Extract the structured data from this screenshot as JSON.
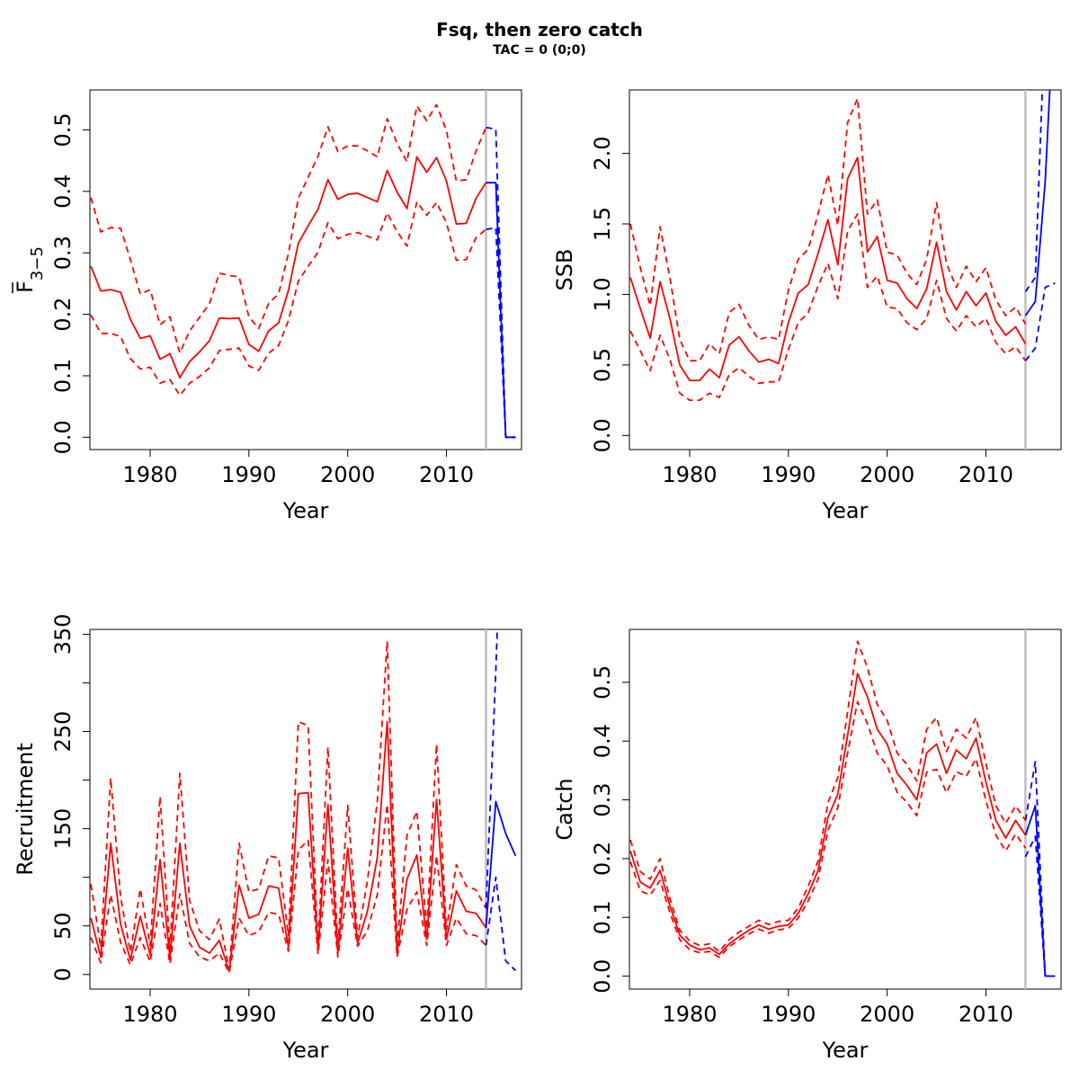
{
  "figure": {
    "title": "Fsq, then zero catch",
    "subtitle": "TAC = 0 (0;0)"
  },
  "colors": {
    "hist": "#ff0000",
    "proj": "#0000ff",
    "vline": "#bebebe",
    "axis": "#000000"
  },
  "chart_data": [
    {
      "id": "fbar",
      "type": "line",
      "xlabel": "Year",
      "ylabel_main": "F",
      "ylabel_sub": "3−5",
      "xlim": [
        1973.9,
        2017.6
      ],
      "ylim": [
        -0.02,
        0.565
      ],
      "xticks": [
        "1980",
        "1990",
        "2000",
        "2010"
      ],
      "yticks": [
        "0.0",
        "0.1",
        "0.2",
        "0.3",
        "0.4",
        "0.5"
      ],
      "vline_x": 2014,
      "hist_x0": 1974,
      "hist_mid": [
        0.278,
        0.238,
        0.24,
        0.236,
        0.192,
        0.161,
        0.165,
        0.127,
        0.136,
        0.097,
        0.123,
        0.139,
        0.157,
        0.194,
        0.193,
        0.194,
        0.151,
        0.14,
        0.173,
        0.186,
        0.239,
        0.316,
        0.344,
        0.371,
        0.419,
        0.387,
        0.395,
        0.397,
        0.39,
        0.383,
        0.434,
        0.399,
        0.372,
        0.456,
        0.431,
        0.455,
        0.417,
        0.347,
        0.348,
        0.389,
        0.414
      ],
      "hist_lo": [
        0.199,
        0.169,
        0.169,
        0.164,
        0.128,
        0.111,
        0.114,
        0.088,
        0.094,
        0.068,
        0.088,
        0.099,
        0.113,
        0.141,
        0.143,
        0.145,
        0.116,
        0.109,
        0.137,
        0.149,
        0.19,
        0.254,
        0.278,
        0.301,
        0.349,
        0.323,
        0.33,
        0.333,
        0.327,
        0.321,
        0.365,
        0.335,
        0.311,
        0.383,
        0.361,
        0.382,
        0.349,
        0.288,
        0.289,
        0.325,
        0.338
      ],
      "hist_hi": [
        0.39,
        0.334,
        0.341,
        0.34,
        0.289,
        0.233,
        0.24,
        0.183,
        0.196,
        0.137,
        0.173,
        0.195,
        0.217,
        0.267,
        0.263,
        0.261,
        0.196,
        0.177,
        0.218,
        0.233,
        0.299,
        0.389,
        0.423,
        0.457,
        0.505,
        0.465,
        0.474,
        0.474,
        0.466,
        0.456,
        0.518,
        0.478,
        0.448,
        0.539,
        0.515,
        0.541,
        0.499,
        0.417,
        0.419,
        0.466,
        0.504
      ],
      "proj_x": [
        2014,
        2015,
        2016,
        2017
      ],
      "proj_mid": [
        0.414,
        0.414,
        0.0,
        0.0
      ],
      "proj_lo": [
        0.338,
        0.341,
        0.0,
        0.0
      ],
      "proj_hi": [
        0.504,
        0.501,
        0.0,
        0.0
      ]
    },
    {
      "id": "ssb",
      "type": "line",
      "xlabel": "Year",
      "ylabel_main": "SSB",
      "ylabel_sub": "",
      "xlim": [
        1973.9,
        2017.6
      ],
      "ylim": [
        -0.1,
        2.45
      ],
      "xticks": [
        "1980",
        "1990",
        "2000",
        "2010"
      ],
      "yticks": [
        "0.0",
        "0.5",
        "1.0",
        "1.5",
        "2.0"
      ],
      "vline_x": 2014,
      "hist_x0": 1974,
      "hist_mid": [
        1.12,
        0.9,
        0.69,
        1.09,
        0.83,
        0.5,
        0.39,
        0.39,
        0.47,
        0.41,
        0.64,
        0.7,
        0.6,
        0.52,
        0.54,
        0.51,
        0.8,
        1.01,
        1.07,
        1.29,
        1.53,
        1.21,
        1.82,
        1.97,
        1.3,
        1.41,
        1.1,
        1.08,
        0.97,
        0.9,
        1.04,
        1.37,
        1.02,
        0.89,
        1.02,
        0.92,
        1.01,
        0.81,
        0.71,
        0.77,
        0.65
      ],
      "hist_lo": [
        0.74,
        0.6,
        0.46,
        0.71,
        0.54,
        0.3,
        0.25,
        0.25,
        0.3,
        0.27,
        0.43,
        0.48,
        0.42,
        0.37,
        0.38,
        0.38,
        0.61,
        0.8,
        0.87,
        1.06,
        1.22,
        0.97,
        1.45,
        1.57,
        1.05,
        1.13,
        0.91,
        0.9,
        0.8,
        0.75,
        0.83,
        1.1,
        0.83,
        0.74,
        0.85,
        0.77,
        0.83,
        0.66,
        0.58,
        0.63,
        0.53
      ],
      "hist_hi": [
        1.5,
        1.19,
        0.92,
        1.48,
        1.12,
        0.68,
        0.53,
        0.53,
        0.65,
        0.58,
        0.87,
        0.93,
        0.78,
        0.68,
        0.7,
        0.68,
        1.03,
        1.25,
        1.32,
        1.57,
        1.85,
        1.49,
        2.22,
        2.39,
        1.57,
        1.67,
        1.3,
        1.28,
        1.15,
        1.07,
        1.25,
        1.65,
        1.22,
        1.05,
        1.2,
        1.09,
        1.19,
        0.96,
        0.85,
        0.91,
        0.79
      ],
      "proj_x": [
        2014,
        2015,
        2016,
        2017
      ],
      "proj_mid": [
        0.85,
        0.95,
        1.8,
        3.2
      ],
      "proj_lo": [
        0.53,
        0.62,
        1.05,
        1.08
      ],
      "proj_hi": [
        1.02,
        1.12,
        3.0,
        4.5
      ]
    },
    {
      "id": "rec",
      "type": "line",
      "xlabel": "Year",
      "ylabel_main": "Recruitment",
      "ylabel_sub": "",
      "xlim": [
        1973.9,
        2017.6
      ],
      "ylim": [
        -15,
        355
      ],
      "xticks": [
        "1980",
        "1990",
        "2000",
        "2010"
      ],
      "yticks": [
        "0",
        "50",
        "150",
        "250",
        "350"
      ],
      "yticks_minor": [
        100,
        200,
        300
      ],
      "vline_x": 2014,
      "hist_x0": 1974,
      "hist_mid": [
        58,
        18,
        135,
        52,
        15,
        60,
        20,
        118,
        17,
        135,
        50,
        28,
        22,
        35,
        3,
        92,
        58,
        62,
        91,
        89,
        28,
        186,
        187,
        25,
        175,
        22,
        130,
        32,
        65,
        120,
        260,
        22,
        98,
        123,
        36,
        180,
        36,
        86,
        65,
        63,
        48
      ],
      "hist_lo": [
        38,
        12,
        82,
        33,
        10,
        38,
        13,
        73,
        11,
        83,
        32,
        18,
        14,
        22,
        2,
        58,
        40,
        44,
        64,
        62,
        24,
        128,
        138,
        21,
        118,
        18,
        88,
        29,
        45,
        82,
        175,
        18,
        67,
        85,
        30,
        122,
        30,
        58,
        42,
        40,
        30
      ],
      "hist_hi": [
        93,
        28,
        202,
        80,
        23,
        88,
        30,
        183,
        26,
        207,
        76,
        45,
        36,
        57,
        5,
        135,
        85,
        88,
        122,
        120,
        40,
        260,
        256,
        30,
        234,
        30,
        174,
        38,
        96,
        178,
        343,
        30,
        143,
        168,
        47,
        237,
        46,
        113,
        91,
        87,
        68
      ],
      "proj_x": [
        2014,
        2015,
        2016,
        2017
      ],
      "proj_mid": [
        48,
        178,
        145,
        122
      ],
      "proj_lo": [
        30,
        100,
        14,
        4
      ],
      "proj_hi": [
        68,
        312,
        600,
        800
      ]
    },
    {
      "id": "catch",
      "type": "line",
      "xlabel": "Year",
      "ylabel_main": "Catch",
      "ylabel_sub": "",
      "xlim": [
        1973.9,
        2017.6
      ],
      "ylim": [
        -0.022,
        0.59
      ],
      "xticks": [
        "1980",
        "1990",
        "2000",
        "2010"
      ],
      "yticks": [
        "0.0",
        "0.1",
        "0.2",
        "0.3",
        "0.4",
        "0.5"
      ],
      "vline_x": 2014,
      "hist_x0": 1974,
      "hist_mid": [
        0.213,
        0.16,
        0.15,
        0.18,
        0.12,
        0.07,
        0.053,
        0.045,
        0.048,
        0.037,
        0.055,
        0.067,
        0.078,
        0.087,
        0.08,
        0.085,
        0.087,
        0.107,
        0.14,
        0.18,
        0.27,
        0.31,
        0.41,
        0.515,
        0.475,
        0.42,
        0.395,
        0.345,
        0.325,
        0.3,
        0.38,
        0.395,
        0.345,
        0.385,
        0.37,
        0.405,
        0.33,
        0.265,
        0.235,
        0.265,
        0.24
      ],
      "hist_lo": [
        0.195,
        0.145,
        0.138,
        0.163,
        0.108,
        0.062,
        0.045,
        0.04,
        0.042,
        0.032,
        0.05,
        0.062,
        0.072,
        0.08,
        0.073,
        0.079,
        0.081,
        0.099,
        0.128,
        0.165,
        0.248,
        0.287,
        0.38,
        0.467,
        0.43,
        0.379,
        0.358,
        0.313,
        0.296,
        0.273,
        0.347,
        0.352,
        0.312,
        0.348,
        0.34,
        0.37,
        0.298,
        0.24,
        0.213,
        0.242,
        0.218
      ],
      "hist_hi": [
        0.232,
        0.178,
        0.165,
        0.2,
        0.132,
        0.078,
        0.06,
        0.052,
        0.055,
        0.042,
        0.062,
        0.075,
        0.085,
        0.095,
        0.088,
        0.093,
        0.095,
        0.116,
        0.153,
        0.196,
        0.295,
        0.338,
        0.45,
        0.57,
        0.525,
        0.462,
        0.435,
        0.38,
        0.36,
        0.332,
        0.42,
        0.44,
        0.382,
        0.42,
        0.405,
        0.44,
        0.362,
        0.29,
        0.26,
        0.29,
        0.265
      ],
      "proj_x": [
        2014,
        2015,
        2016,
        2017
      ],
      "proj_mid": [
        0.24,
        0.29,
        0.0,
        0.0
      ],
      "proj_lo": [
        0.203,
        0.238,
        0.0,
        0.0
      ],
      "proj_hi": [
        0.265,
        0.365,
        0.0,
        0.0
      ]
    }
  ]
}
